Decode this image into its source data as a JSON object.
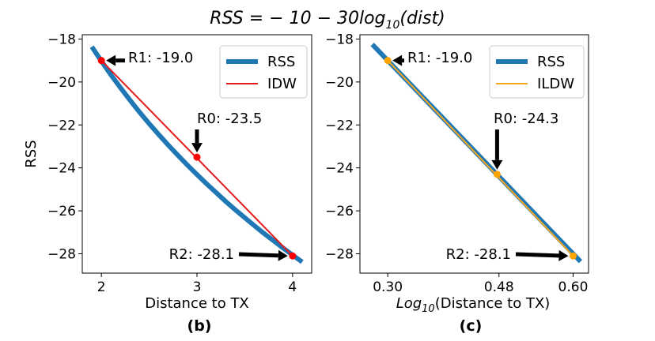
{
  "figure": {
    "title_parts": [
      "RSS = − 10 − 30log",
      "10",
      "(dist)"
    ]
  },
  "colors": {
    "rss": "#1f77b4",
    "idw": "#e41a1c",
    "ildw": "#f5a623",
    "points_b": "#ff0000",
    "points_c": "#ffa500"
  },
  "chart_data": [
    {
      "type": "line",
      "panel_label": "(b)",
      "xlabel": "Distance to TX",
      "ylabel": "RSS",
      "xlim": [
        1.8,
        4.2
      ],
      "ylim": [
        -28.9,
        -17.8
      ],
      "xticks": [
        2,
        3,
        4
      ],
      "xtick_labels": [
        "2",
        "3",
        "4"
      ],
      "yticks": [
        -18,
        -20,
        -22,
        -24,
        -26,
        -28
      ],
      "ytick_labels": [
        "−18",
        "−20",
        "−22",
        "−24",
        "−26",
        "−28"
      ],
      "legend_position": "top-right",
      "series": [
        {
          "name": "RSS",
          "x": [
            1.9,
            2.0,
            2.1,
            2.2,
            2.3,
            2.4,
            2.5,
            2.6,
            2.7,
            2.8,
            2.9,
            3.0,
            3.1,
            3.2,
            3.3,
            3.4,
            3.5,
            3.6,
            3.7,
            3.8,
            3.9,
            4.0,
            4.1
          ],
          "y": [
            -18.36,
            -19.03,
            -19.67,
            -20.27,
            -20.85,
            -21.41,
            -21.94,
            -22.45,
            -22.94,
            -23.41,
            -23.87,
            -24.31,
            -24.74,
            -25.15,
            -25.56,
            -25.95,
            -26.32,
            -26.69,
            -27.05,
            -27.39,
            -27.73,
            -28.06,
            -28.38
          ]
        },
        {
          "name": "IDW",
          "x": [
            2,
            4
          ],
          "y": [
            -19.0,
            -28.1
          ]
        }
      ],
      "points": [
        {
          "x": 2,
          "y": -19.0,
          "label": "R1: -19.0"
        },
        {
          "x": 3,
          "y": -23.5,
          "label": "R0: -23.5"
        },
        {
          "x": 4,
          "y": -28.1,
          "label": "R2: -28.1"
        }
      ]
    },
    {
      "type": "line",
      "panel_label": "(c)",
      "xlabel_parts": [
        "Log",
        "10",
        "(Distance to TX)"
      ],
      "ylim": [
        -28.9,
        -17.8
      ],
      "xlim": [
        0.255,
        0.625
      ],
      "xticks": [
        0.3,
        0.48,
        0.6
      ],
      "xtick_labels": [
        "0.30",
        "0.48",
        "0.60"
      ],
      "yticks": [
        -18,
        -20,
        -22,
        -24,
        -26,
        -28
      ],
      "ytick_labels": [
        "−18",
        "−20",
        "−22",
        "−24",
        "−26",
        "−28"
      ],
      "legend_position": "top-right",
      "series": [
        {
          "name": "RSS",
          "x": [
            0.275,
            0.612
          ],
          "y": [
            -18.25,
            -28.36
          ]
        },
        {
          "name": "ILDW",
          "x": [
            0.3,
            0.6
          ],
          "y": [
            -19.0,
            -28.1
          ]
        }
      ],
      "points": [
        {
          "x": 0.3,
          "y": -19.0,
          "label": "R1: -19.0"
        },
        {
          "x": 0.477,
          "y": -24.3,
          "label": "R0: -24.3"
        },
        {
          "x": 0.6,
          "y": -28.1,
          "label": "R2: -28.1"
        }
      ]
    }
  ]
}
